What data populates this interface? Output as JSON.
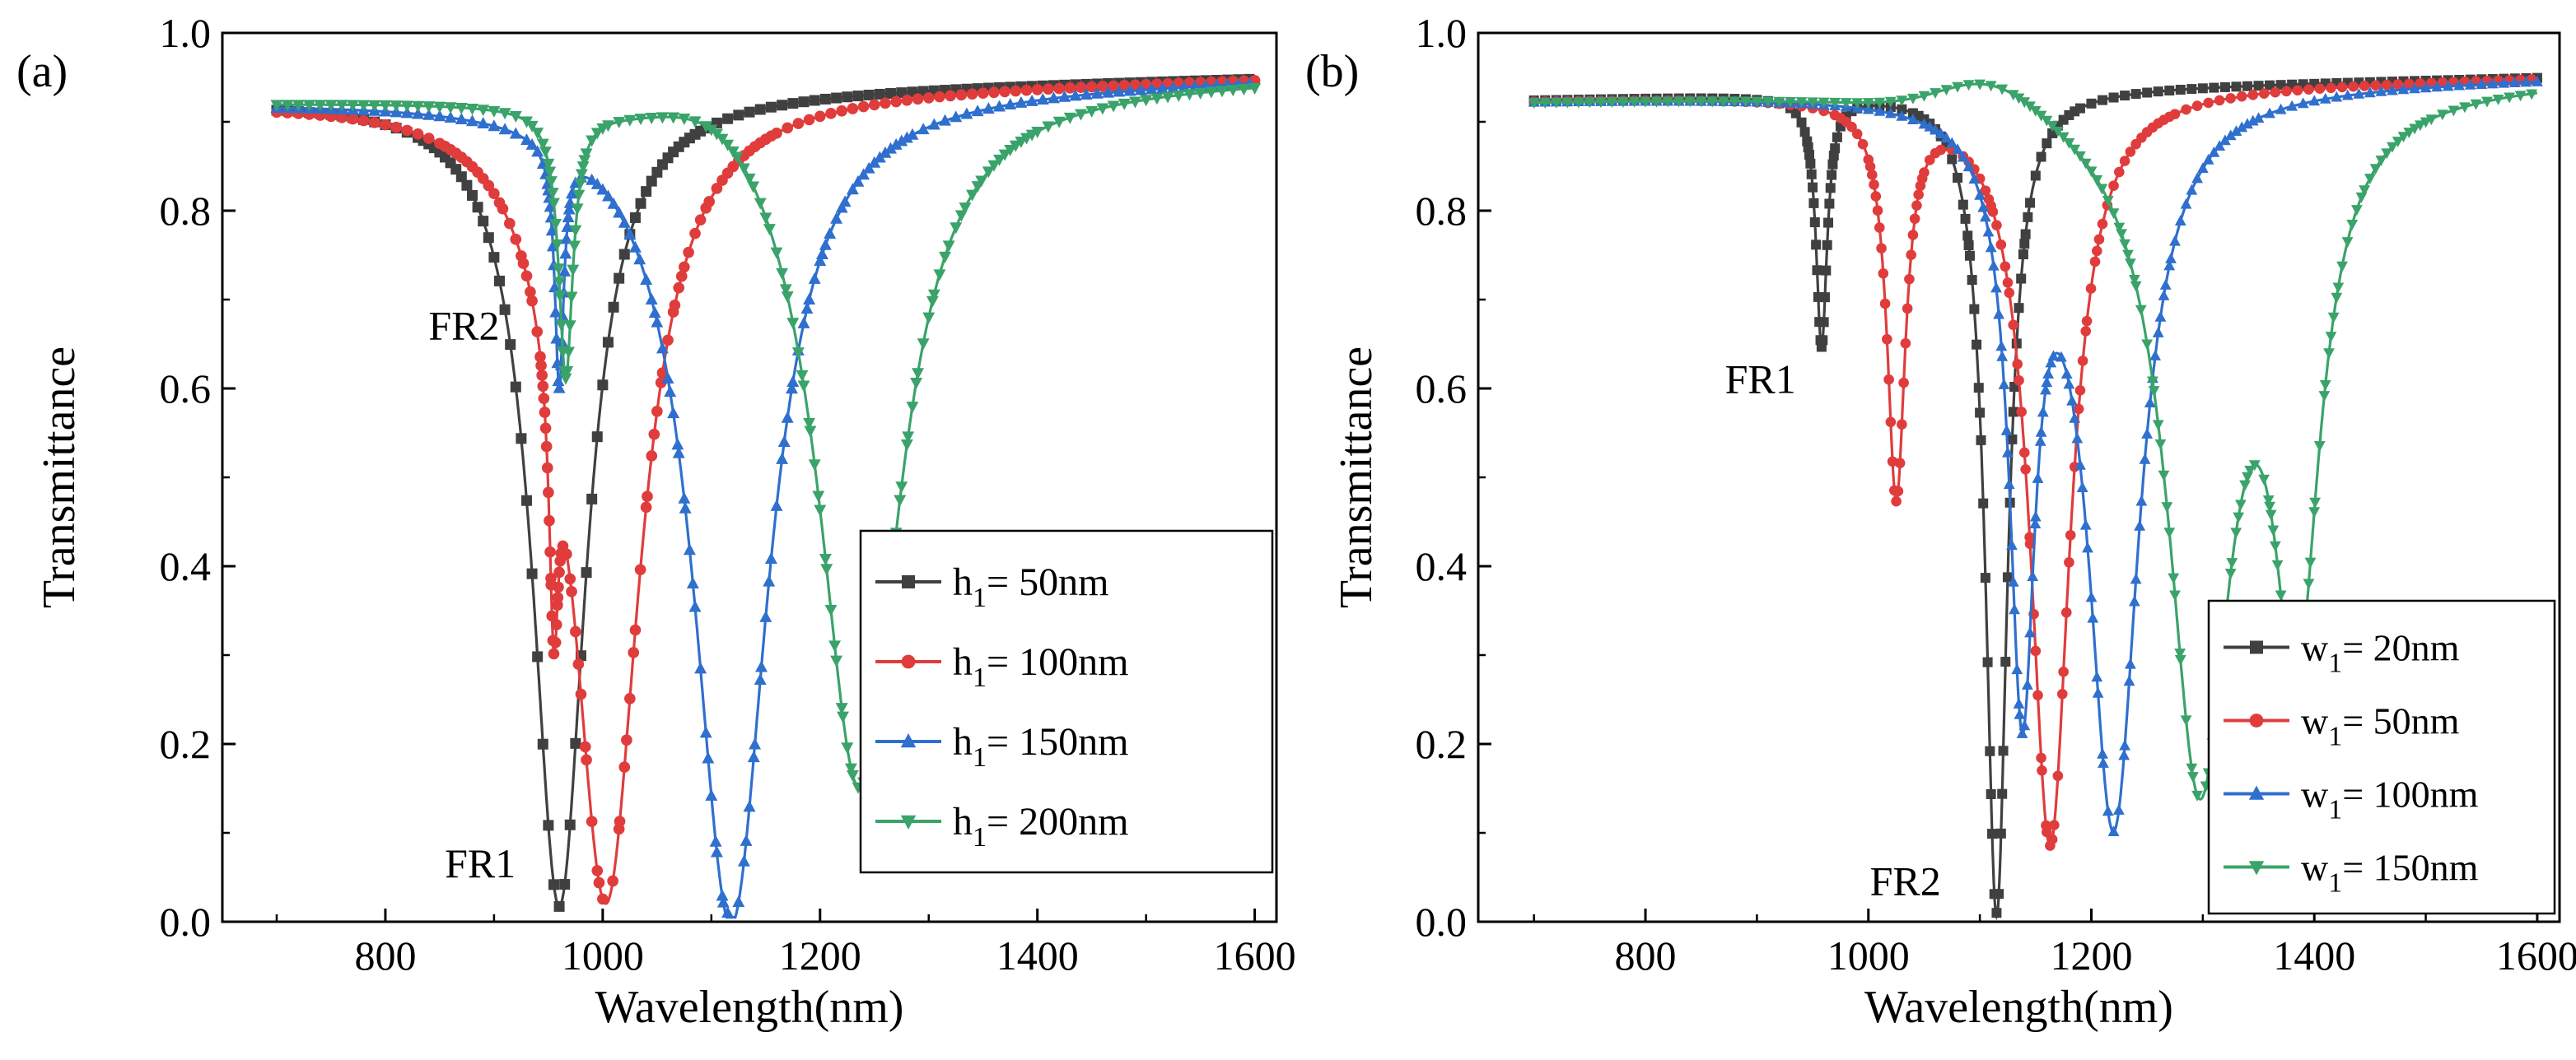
{
  "chart_data": [
    {
      "panel": "(a)",
      "type": "line",
      "xlabel": "Wavelength(nm)",
      "ylabel": "Transmittance",
      "xlim": [
        650,
        1620
      ],
      "ylim": [
        0.0,
        1.0
      ],
      "xticks": [
        800,
        1000,
        1200,
        1400,
        1600
      ],
      "yticks": [
        0.0,
        0.2,
        0.4,
        0.6,
        0.8,
        1.0
      ],
      "legend": "bottom-right",
      "annotations": [
        {
          "text": "FR2",
          "x": 905,
          "y": 0.655
        },
        {
          "text": "FR1",
          "x": 920,
          "y": 0.05
        }
      ],
      "series": [
        {
          "name": "h1= 50nm",
          "label_main": "h",
          "label_sub": "1",
          "label_rest": "= 50nm",
          "color": "#404040",
          "marker": "square",
          "baseline_start": 0.925,
          "baseline_end": 0.95,
          "dips": [
            {
              "center": 960,
              "depth": 0.915,
              "width": 30
            }
          ]
        },
        {
          "name": "h1= 100nm",
          "label_main": "h",
          "label_sub": "1",
          "label_rest": "= 100nm",
          "color": "#e03c3c",
          "marker": "circle",
          "baseline_start": 0.925,
          "baseline_end": 0.95,
          "dips": [
            {
              "center": 955,
              "depth": 0.28,
              "width": 5
            },
            {
              "center": 1003,
              "depth": 0.91,
              "width": 38
            }
          ]
        },
        {
          "name": "h1= 150nm",
          "label_main": "h",
          "label_sub": "1",
          "label_rest": "= 150nm",
          "color": "#2f6fce",
          "marker": "triangle-up",
          "baseline_start": 0.925,
          "baseline_end": 0.95,
          "dips": [
            {
              "center": 960,
              "depth": 0.27,
              "width": 5
            },
            {
              "center": 1118,
              "depth": 0.94,
              "width": 42
            }
          ]
        },
        {
          "name": "h1= 200nm",
          "label_main": "h",
          "label_sub": "1",
          "label_rest": "= 200nm",
          "color": "#3aa36a",
          "marker": "triangle-down",
          "baseline_start": 0.925,
          "baseline_end": 0.95,
          "peak": {
            "center": 1110,
            "height": 0.035,
            "width": 70
          },
          "dips": [
            {
              "center": 966,
              "depth": 0.3,
              "width": 8
            },
            {
              "center": 1236,
              "depth": 0.79,
              "width": 45
            }
          ]
        }
      ]
    },
    {
      "panel": "(b)",
      "type": "line",
      "xlabel": "Wavelength(nm)",
      "ylabel": "Transmittance",
      "xlim": [
        650,
        1620
      ],
      "ylim": [
        0.0,
        1.0
      ],
      "xticks": [
        800,
        1000,
        1200,
        1400,
        1600
      ],
      "yticks": [
        0.0,
        0.2,
        0.4,
        0.6,
        0.8,
        1.0
      ],
      "legend": "bottom-right",
      "annotations": [
        {
          "text": "FR1",
          "x": 935,
          "y": 0.595
        },
        {
          "text": "FR2",
          "x": 1065,
          "y": 0.03
        }
      ],
      "series": [
        {
          "name": "w1= 20nm",
          "label_main": "w",
          "label_sub": "1",
          "label_rest": "= 20nm",
          "color": "#404040",
          "marker": "square",
          "baseline_start": 0.925,
          "baseline_end": 0.95,
          "dips": [
            {
              "center": 958,
              "depth": 0.28,
              "width": 6
            },
            {
              "center": 1115,
              "depth": 0.93,
              "width": 12
            }
          ]
        },
        {
          "name": "w1= 50nm",
          "label_main": "w",
          "label_sub": "1",
          "label_rest": "= 50nm",
          "color": "#e03c3c",
          "marker": "circle",
          "baseline_start": 0.925,
          "baseline_end": 0.95,
          "dips": [
            {
              "center": 1025,
              "depth": 0.44,
              "width": 10
            },
            {
              "center": 1163,
              "depth": 0.85,
              "width": 22
            }
          ]
        },
        {
          "name": "w1= 100nm",
          "label_main": "w",
          "label_sub": "1",
          "label_rest": "= 100nm",
          "color": "#2f6fce",
          "marker": "triangle-up",
          "baseline_start": 0.925,
          "baseline_end": 0.95,
          "dips": [
            {
              "center": 1138,
              "depth": 0.64,
              "width": 14
            },
            {
              "center": 1220,
              "depth": 0.82,
              "width": 28
            }
          ]
        },
        {
          "name": "w1= 150nm",
          "label_main": "w",
          "label_sub": "1",
          "label_rest": "= 150nm",
          "color": "#3aa36a",
          "marker": "triangle-down",
          "baseline_start": 0.925,
          "baseline_end": 0.95,
          "peak": {
            "center": 1110,
            "height": 0.035,
            "width": 60
          },
          "dips": [
            {
              "center": 1297,
              "depth": 0.76,
              "width": 35
            },
            {
              "center": 1384,
              "depth": 0.57,
              "width": 25
            }
          ]
        }
      ]
    }
  ]
}
